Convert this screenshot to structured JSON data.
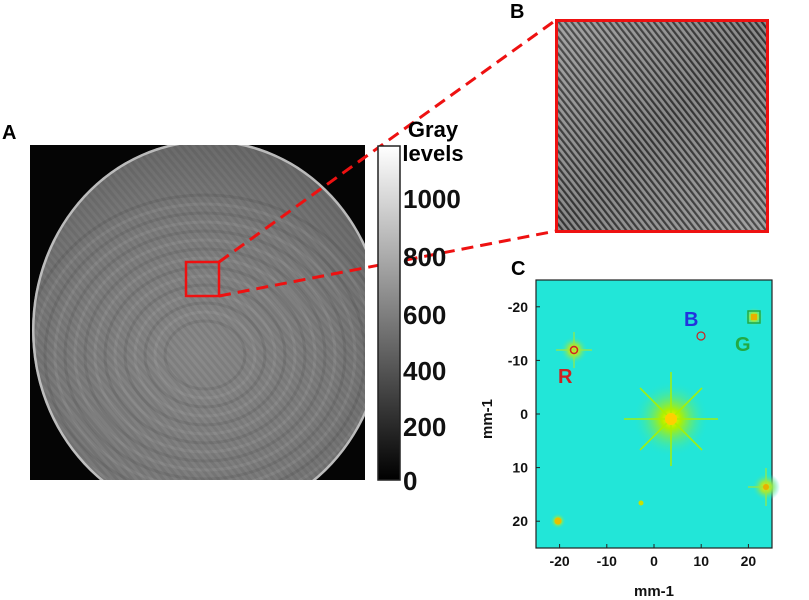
{
  "panels": {
    "a_label": "A",
    "b_label": "B",
    "c_label": "C"
  },
  "colorbar": {
    "title_line1": "Gray",
    "title_line2": "levels",
    "ticks": [
      "1000",
      "800",
      "600",
      "400",
      "200",
      "0"
    ],
    "range": [
      0,
      1150
    ]
  },
  "spectrum": {
    "xlabel": "mm-1",
    "ylabel": "mm-1",
    "x_ticks": [
      "-20",
      "-10",
      "0",
      "10",
      "20"
    ],
    "y_ticks": [
      "-20",
      "-10",
      "0",
      "10",
      "20"
    ],
    "xlim": [
      -25,
      25
    ],
    "ylim": [
      -25,
      25
    ],
    "peak_labels": {
      "R": "R",
      "B": "B",
      "G": "G"
    },
    "colors": {
      "background": "#22e6d8",
      "R": "#cc2222",
      "B": "#2233dd",
      "G": "#22aa44",
      "zoom_box": "#ee1111"
    }
  }
}
